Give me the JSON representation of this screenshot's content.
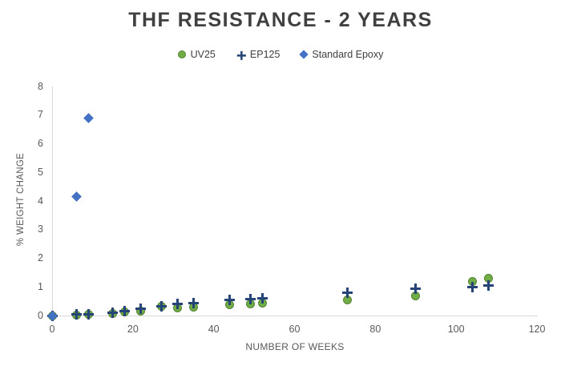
{
  "chart_data": {
    "type": "scatter",
    "title": "THF RESISTANCE - 2 YEARS",
    "xlabel": "NUMBER OF WEEKS",
    "ylabel": "% WEIGHT CHANGE",
    "xlim": [
      0,
      120
    ],
    "ylim": [
      0,
      8
    ],
    "xticks": [
      0,
      20,
      40,
      60,
      80,
      100,
      120
    ],
    "yticks": [
      0,
      1,
      2,
      3,
      4,
      5,
      6,
      7,
      8
    ],
    "grid": false,
    "legend_position": "top-center",
    "colors": {
      "title_text": "#404040",
      "axis_text": "#595959",
      "axis_line": "#D9D9D9",
      "uv25_green": "#70AD47",
      "uv25_green_border": "#548235",
      "ep125_navy": "#264478",
      "standard_epoxy_blue": "#4472C4"
    },
    "series": [
      {
        "name": "UV25",
        "marker": "circle",
        "color": "#70AD47",
        "border_color": "#548235",
        "points": [
          [
            0,
            0
          ],
          [
            6,
            0.03
          ],
          [
            9,
            0.05
          ],
          [
            15,
            0.08
          ],
          [
            18,
            0.13
          ],
          [
            22,
            0.15
          ],
          [
            27,
            0.32
          ],
          [
            31,
            0.28
          ],
          [
            35,
            0.3
          ],
          [
            44,
            0.38
          ],
          [
            49,
            0.42
          ],
          [
            52,
            0.43
          ],
          [
            73,
            0.55
          ],
          [
            90,
            0.7
          ],
          [
            104,
            1.2
          ],
          [
            108,
            1.3
          ]
        ]
      },
      {
        "name": "EP125",
        "marker": "plus",
        "color": "#264478",
        "border_color": "#264478",
        "points": [
          [
            0,
            0
          ],
          [
            6,
            0.04
          ],
          [
            9,
            0.05
          ],
          [
            15,
            0.1
          ],
          [
            18,
            0.15
          ],
          [
            22,
            0.25
          ],
          [
            27,
            0.33
          ],
          [
            31,
            0.42
          ],
          [
            35,
            0.45
          ],
          [
            44,
            0.55
          ],
          [
            49,
            0.58
          ],
          [
            52,
            0.6
          ],
          [
            73,
            0.8
          ],
          [
            90,
            0.95
          ],
          [
            104,
            1.0
          ],
          [
            108,
            1.05
          ]
        ]
      },
      {
        "name": "Standard Epoxy",
        "marker": "diamond",
        "color": "#4472C4",
        "border_color": "#2F5597",
        "points": [
          [
            0,
            0
          ],
          [
            6,
            4.15
          ],
          [
            9,
            6.9
          ]
        ]
      }
    ]
  }
}
